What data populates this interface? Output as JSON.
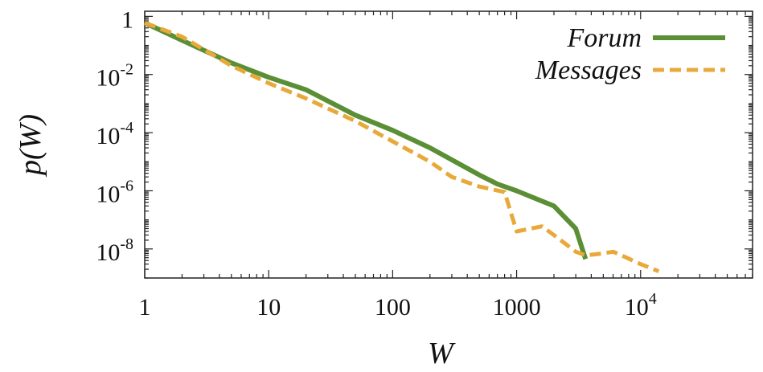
{
  "chart_data": {
    "type": "line",
    "title": "",
    "xlabel": "W",
    "ylabel": "p(W)",
    "x_scale": "log",
    "y_scale": "log",
    "xlim": [
      1,
      80000
    ],
    "ylim": [
      1e-09,
      1.5
    ],
    "grid": false,
    "legend_position": "top-right",
    "x_ticks": [
      {
        "value": 1,
        "base": "1",
        "sup": ""
      },
      {
        "value": 10,
        "base": "10",
        "sup": ""
      },
      {
        "value": 100,
        "base": "100",
        "sup": ""
      },
      {
        "value": 1000,
        "base": "1000",
        "sup": ""
      },
      {
        "value": 10000,
        "base": "10",
        "sup": "4"
      }
    ],
    "y_ticks": [
      {
        "value": 1,
        "base": "1",
        "sup": ""
      },
      {
        "value": 0.01,
        "base": "10",
        "sup": "-2"
      },
      {
        "value": 0.0001,
        "base": "10",
        "sup": "-4"
      },
      {
        "value": 1e-06,
        "base": "10",
        "sup": "-6"
      },
      {
        "value": 1e-08,
        "base": "10",
        "sup": "-8"
      }
    ],
    "series": [
      {
        "name": "Forum",
        "color": "#5a8f35",
        "style": "solid",
        "x": [
          1,
          2,
          5,
          10,
          20,
          50,
          100,
          200,
          500,
          700,
          1000,
          2000,
          3000,
          3600
        ],
        "y": [
          0.6,
          0.15,
          0.025,
          0.008,
          0.003,
          0.0004,
          0.00012,
          3e-05,
          3.5e-06,
          1.7e-06,
          1e-06,
          3e-07,
          5e-08,
          4.5e-09
        ]
      },
      {
        "name": "Messages",
        "color": "#e8a93a",
        "style": "dashed",
        "x": [
          1,
          2,
          5,
          10,
          20,
          50,
          100,
          200,
          300,
          500,
          800,
          1000,
          1600,
          2000,
          3000,
          3600,
          5000,
          6000,
          7000,
          10000,
          14000
        ],
        "y": [
          0.6,
          0.2,
          0.02,
          0.005,
          0.0015,
          0.00025,
          5e-05,
          1e-05,
          3e-06,
          1.4e-06,
          9e-07,
          4e-08,
          6e-08,
          3e-08,
          8e-09,
          6e-09,
          7e-09,
          8e-09,
          6e-09,
          3e-09,
          1.7e-09
        ]
      }
    ]
  }
}
